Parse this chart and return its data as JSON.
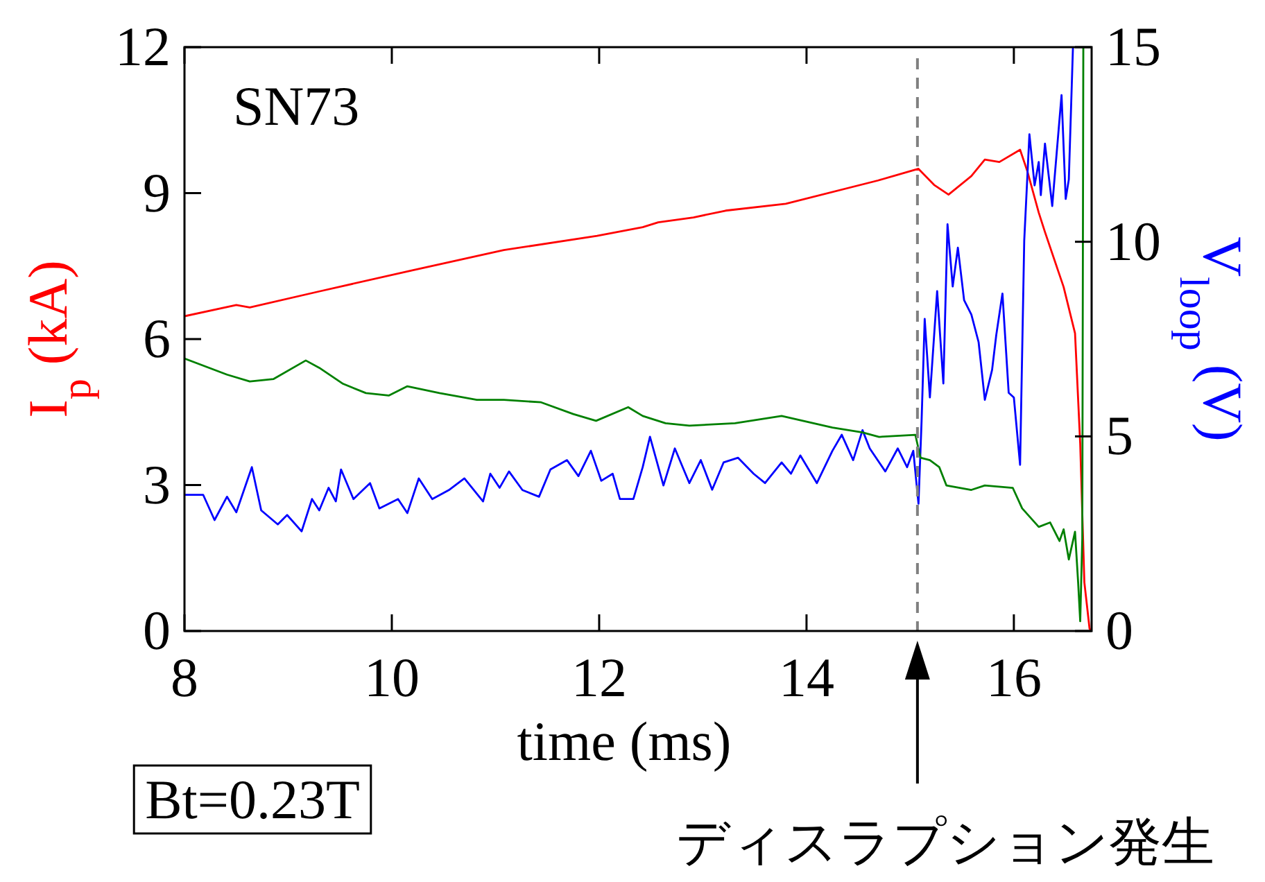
{
  "chart_data": {
    "type": "line",
    "xlabel": "time (ms)",
    "ylabel": "I$_{p}$ (kA)",
    "y2label": "V$_{loop}$ (V)",
    "xlim": [
      8,
      16.75
    ],
    "xticks": [
      8,
      10,
      12,
      14,
      16
    ],
    "ylim": [
      0,
      12
    ],
    "yticks": [
      0,
      3,
      6,
      9,
      12
    ],
    "y2lim": [
      0,
      15
    ],
    "y2ticks": [
      0,
      5,
      10,
      15
    ],
    "grid": false,
    "marker": "none",
    "line_style": "solid",
    "annotations": [
      "SN73",
      "Bt=0.23T",
      "ディスラプション発生"
    ],
    "ref_lines": [
      {
        "axis": "x",
        "value": 15.07,
        "color": "#808080",
        "line_style": "dashed"
      }
    ],
    "series": [
      {
        "color": "#ff0000",
        "x": [
          8.0,
          8.5,
          8.63,
          9.3,
          10.19,
          11.08,
          11.98,
          12.42,
          12.57,
          12.91,
          13.22,
          13.8,
          14.69,
          15.08,
          15.23,
          15.37,
          15.59,
          15.72,
          15.86,
          16.06,
          16.13,
          16.24,
          16.3,
          16.48,
          16.59,
          16.64,
          16.68,
          16.73,
          16.75
        ],
        "values": [
          6.47,
          6.7,
          6.65,
          6.98,
          7.41,
          7.83,
          8.12,
          8.3,
          8.4,
          8.5,
          8.64,
          8.78,
          9.26,
          9.5,
          9.17,
          8.97,
          9.35,
          9.69,
          9.64,
          9.89,
          9.45,
          8.6,
          8.2,
          7.07,
          6.12,
          3.85,
          1.0,
          0.05,
          0
        ]
      },
      {
        "color": "#0000ff",
        "axis": "y2",
        "x": [
          8.0,
          8.18,
          8.29,
          8.41,
          8.5,
          8.65,
          8.74,
          8.9,
          8.99,
          9.13,
          9.23,
          9.3,
          9.39,
          9.46,
          9.51,
          9.63,
          9.79,
          9.88,
          10.06,
          10.15,
          10.26,
          10.39,
          10.55,
          10.7,
          10.88,
          10.95,
          11.04,
          11.13,
          11.26,
          11.42,
          11.53,
          11.69,
          11.8,
          11.92,
          12.02,
          12.13,
          12.2,
          12.33,
          12.42,
          12.49,
          12.62,
          12.73,
          12.87,
          12.98,
          13.09,
          13.2,
          13.34,
          13.49,
          13.6,
          13.76,
          13.85,
          13.94,
          14.1,
          14.25,
          14.34,
          14.45,
          14.54,
          14.61,
          14.76,
          14.88,
          14.97,
          15.03,
          15.08,
          15.11,
          15.14,
          15.19,
          15.26,
          15.32,
          15.36,
          15.41,
          15.46,
          15.52,
          15.59,
          15.66,
          15.72,
          15.79,
          15.83,
          15.89,
          15.95,
          16.0,
          16.06,
          16.1,
          16.15,
          16.2,
          16.24,
          16.26,
          16.3,
          16.37,
          16.46,
          16.5,
          16.53,
          16.57
        ],
        "values": [
          3.5,
          3.5,
          2.85,
          3.45,
          3.05,
          4.21,
          3.1,
          2.74,
          2.98,
          2.56,
          3.39,
          3.1,
          3.68,
          3.33,
          4.15,
          3.39,
          3.8,
          3.15,
          3.39,
          3.03,
          3.92,
          3.39,
          3.62,
          3.92,
          3.33,
          4.04,
          3.68,
          4.1,
          3.62,
          3.45,
          4.15,
          4.39,
          3.98,
          4.63,
          3.86,
          4.04,
          3.39,
          3.39,
          4.21,
          4.99,
          3.74,
          4.69,
          3.8,
          4.39,
          3.63,
          4.33,
          4.45,
          4.04,
          3.8,
          4.33,
          4.04,
          4.51,
          3.8,
          4.63,
          5.04,
          4.39,
          5.16,
          4.69,
          4.1,
          4.69,
          4.21,
          4.63,
          3.27,
          5.4,
          8.02,
          6.0,
          8.73,
          6.36,
          10.45,
          8.85,
          9.85,
          8.5,
          8.13,
          7.42,
          5.94,
          6.71,
          7.6,
          8.67,
          6.12,
          6.0,
          4.27,
          10.03,
          12.76,
          11.45,
          12.05,
          11.2,
          12.52,
          10.92,
          13.77,
          11.1,
          11.6,
          15
        ]
      },
      {
        "color": "#008000",
        "x": [
          8.0,
          8.41,
          8.63,
          8.86,
          9.17,
          9.3,
          9.53,
          9.75,
          9.97,
          10.15,
          10.46,
          10.82,
          11.08,
          11.44,
          11.75,
          11.97,
          12.28,
          12.42,
          12.64,
          12.87,
          13.31,
          13.76,
          14.25,
          14.54,
          14.7,
          15.05,
          15.1,
          15.19,
          15.28,
          15.35,
          15.59,
          15.72,
          15.99,
          16.08,
          16.24,
          16.35,
          16.44,
          16.48,
          16.53,
          16.59,
          16.62,
          16.64,
          16.66,
          16.67
        ],
        "values": [
          5.6,
          5.27,
          5.13,
          5.18,
          5.56,
          5.41,
          5.08,
          4.89,
          4.84,
          5.03,
          4.89,
          4.75,
          4.75,
          4.7,
          4.46,
          4.32,
          4.6,
          4.42,
          4.27,
          4.22,
          4.27,
          4.42,
          4.18,
          4.08,
          3.99,
          4.03,
          3.56,
          3.51,
          3.37,
          2.99,
          2.9,
          2.99,
          2.94,
          2.52,
          2.14,
          2.23,
          1.85,
          2.09,
          1.47,
          2.04,
          1.0,
          0.2,
          1.9,
          12
        ]
      }
    ]
  }
}
